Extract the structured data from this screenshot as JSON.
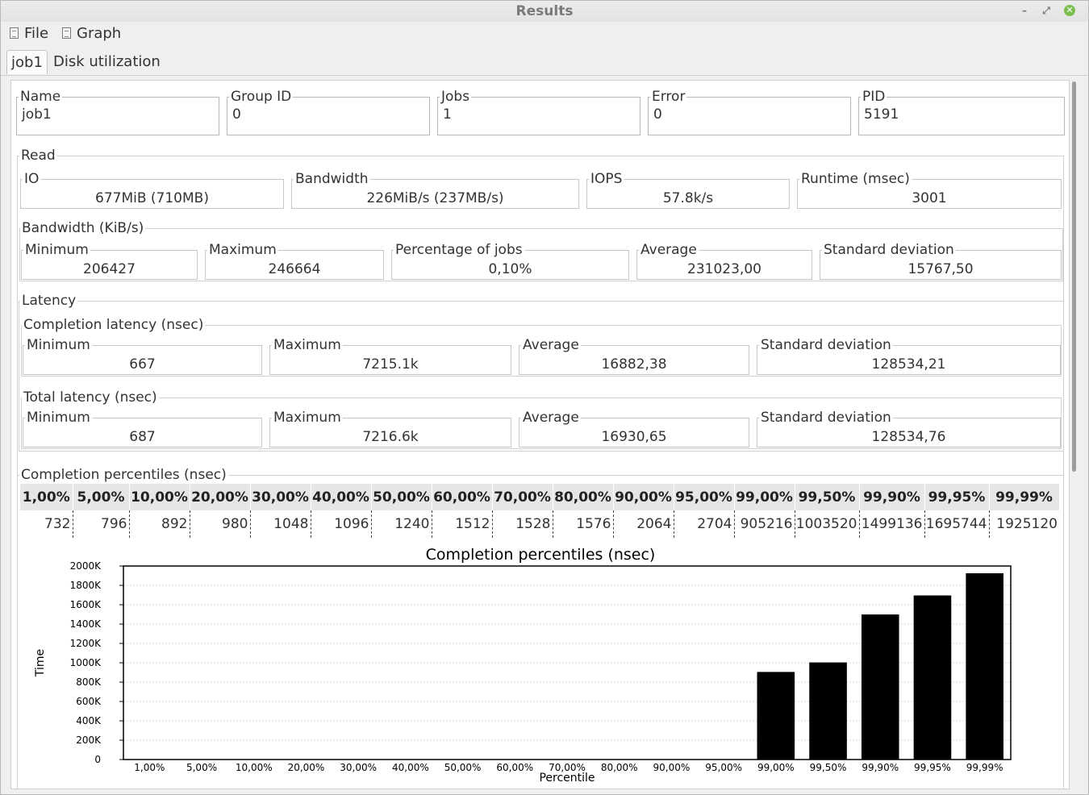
{
  "window": {
    "title": "Results"
  },
  "menu": [
    {
      "label": "File"
    },
    {
      "label": "Graph"
    }
  ],
  "tabs": [
    {
      "label": "job1",
      "active": true
    },
    {
      "label": "Disk utilization",
      "active": false
    }
  ],
  "job": {
    "name_label": "Name",
    "name": "job1",
    "group_label": "Group ID",
    "group": "0",
    "jobs_label": "Jobs",
    "jobs": "1",
    "error_label": "Error",
    "error": "0",
    "pid_label": "PID",
    "pid": "5191"
  },
  "read": {
    "title": "Read",
    "io_label": "IO",
    "io": "677MiB (710MB)",
    "bw_label": "Bandwidth",
    "bw": "226MiB/s (237MB/s)",
    "iops_label": "IOPS",
    "iops": "57.8k/s",
    "runtime_label": "Runtime (msec)",
    "runtime": "3001"
  },
  "bandwidth": {
    "title": "Bandwidth (KiB/s)",
    "min_label": "Minimum",
    "min": "206427",
    "max_label": "Maximum",
    "max": "246664",
    "pct_label": "Percentage of jobs",
    "pct": "0,10%",
    "avg_label": "Average",
    "avg": "231023,00",
    "std_label": "Standard deviation",
    "std": "15767,50"
  },
  "latency": {
    "title": "Latency",
    "completion": {
      "title": "Completion latency (nsec)",
      "min_label": "Minimum",
      "min": "667",
      "max_label": "Maximum",
      "max": "7215.1k",
      "avg_label": "Average",
      "avg": "16882,38",
      "std_label": "Standard deviation",
      "std": "128534,21"
    },
    "total": {
      "title": "Total latency (nsec)",
      "min_label": "Minimum",
      "min": "687",
      "max_label": "Maximum",
      "max": "7216.6k",
      "avg_label": "Average",
      "avg": "16930,65",
      "std_label": "Standard deviation",
      "std": "128534,76"
    }
  },
  "percentiles": {
    "title": "Completion percentiles (nsec)",
    "headers": [
      "1,00%",
      "5,00%",
      "10,00%",
      "20,00%",
      "30,00%",
      "40,00%",
      "50,00%",
      "60,00%",
      "70,00%",
      "80,00%",
      "90,00%",
      "95,00%",
      "99,00%",
      "99,50%",
      "99,90%",
      "99,95%",
      "99,99%"
    ],
    "values": [
      "732",
      "796",
      "892",
      "980",
      "1048",
      "1096",
      "1240",
      "1512",
      "1528",
      "1576",
      "2064",
      "2704",
      "905216",
      "1003520",
      "1499136",
      "1695744",
      "1925120"
    ]
  },
  "chart_data": {
    "type": "bar",
    "title": "Completion percentiles (nsec)",
    "xlabel": "Percentile",
    "ylabel": "Time",
    "categories": [
      "1,00%",
      "5,00%",
      "10,00%",
      "20,00%",
      "30,00%",
      "40,00%",
      "50,00%",
      "60,00%",
      "70,00%",
      "80,00%",
      "90,00%",
      "95,00%",
      "99,00%",
      "99,50%",
      "99,90%",
      "99,95%",
      "99,99%"
    ],
    "values": [
      732,
      796,
      892,
      980,
      1048,
      1096,
      1240,
      1512,
      1528,
      1576,
      2064,
      2704,
      905216,
      1003520,
      1499136,
      1695744,
      1925120
    ],
    "ylim": [
      0,
      2000000
    ],
    "yticks": [
      "0",
      "200K",
      "400K",
      "600K",
      "800K",
      "1000K",
      "1200K",
      "1400K",
      "1600K",
      "1800K",
      "2000K"
    ],
    "grid": true,
    "bar_color": "#000000"
  }
}
